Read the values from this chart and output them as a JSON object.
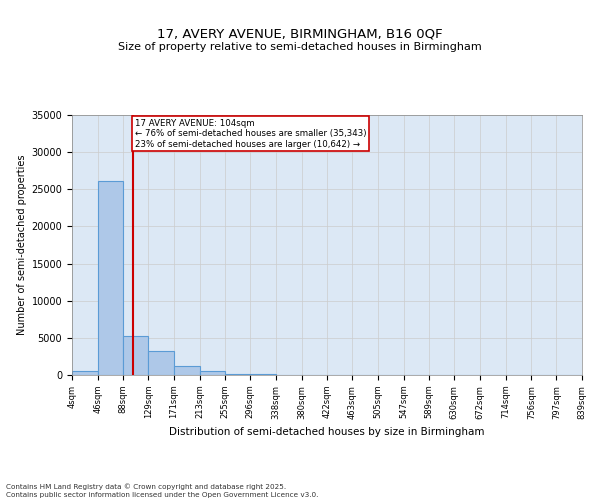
{
  "title1": "17, AVERY AVENUE, BIRMINGHAM, B16 0QF",
  "title2": "Size of property relative to semi-detached houses in Birmingham",
  "xlabel": "Distribution of semi-detached houses by size in Birmingham",
  "ylabel": "Number of semi-detached properties",
  "footnote": "Contains HM Land Registry data © Crown copyright and database right 2025.\nContains public sector information licensed under the Open Government Licence v3.0.",
  "property_size": 104,
  "property_label": "17 AVERY AVENUE: 104sqm",
  "pct_smaller": 76,
  "pct_smaller_n": 35343,
  "pct_larger": 23,
  "pct_larger_n": 10642,
  "bin_edges": [
    4,
    46,
    88,
    129,
    171,
    213,
    255,
    296,
    338,
    380,
    422,
    463,
    505,
    547,
    589,
    630,
    672,
    714,
    756,
    797,
    839
  ],
  "bin_counts": [
    500,
    26100,
    5200,
    3200,
    1200,
    600,
    200,
    100,
    50,
    30,
    20,
    15,
    10,
    8,
    5,
    4,
    3,
    2,
    2,
    1
  ],
  "bar_facecolor": "#aec8e8",
  "bar_edgecolor": "#5b9bd5",
  "redline_color": "#cc0000",
  "annotation_box_edgecolor": "#cc0000",
  "annotation_box_facecolor": "#ffffff",
  "ylim": [
    0,
    35000
  ],
  "yticks": [
    0,
    5000,
    10000,
    15000,
    20000,
    25000,
    30000,
    35000
  ],
  "grid_color": "#cccccc",
  "bg_color": "#dce8f5",
  "fig_bg": "#ffffff"
}
